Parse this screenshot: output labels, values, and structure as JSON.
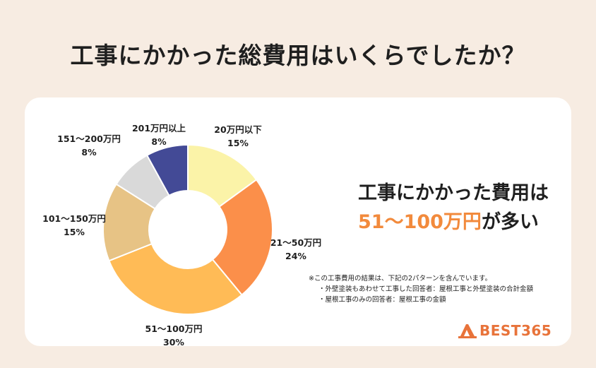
{
  "page": {
    "title": "工事にかかった総費用はいくらでしたか？"
  },
  "headline": {
    "line1": "工事にかかった費用は",
    "accent": "51〜100万円",
    "line2_suffix": "が多い",
    "accent_color": "#f28a3c"
  },
  "notes": {
    "line1": "※この工事費用の結果は、下記の2パターンを含んでいます。",
    "line2": "・外壁塗装もあわせて工事した回答者：屋根工事と外壁塗装の合計金額",
    "line3": "・屋根工事のみの回答者：屋根工事の金額"
  },
  "logo": {
    "text": "BEST365",
    "icon": "logo-mark",
    "color": "#e8733a"
  },
  "chart_data": {
    "type": "pie",
    "style": "donut",
    "title": "",
    "start": "12 o'clock, clockwise",
    "slices": [
      {
        "label": "20万円以下",
        "value": 15,
        "value_label": "15%",
        "color": "#fbf3a8"
      },
      {
        "label": "21〜50万円",
        "value": 24,
        "value_label": "24%",
        "color": "#fb8f4a"
      },
      {
        "label": "51〜100万円",
        "value": 30,
        "value_label": "30%",
        "color": "#ffbb56"
      },
      {
        "label": "101〜150万円",
        "value": 15,
        "value_label": "15%",
        "color": "#e7c385"
      },
      {
        "label": "151〜200万円",
        "value": 8,
        "value_label": "8%",
        "color": "#d9d9d9"
      },
      {
        "label": "201万円以上",
        "value": 8,
        "value_label": "8%",
        "color": "#434a96"
      }
    ]
  }
}
